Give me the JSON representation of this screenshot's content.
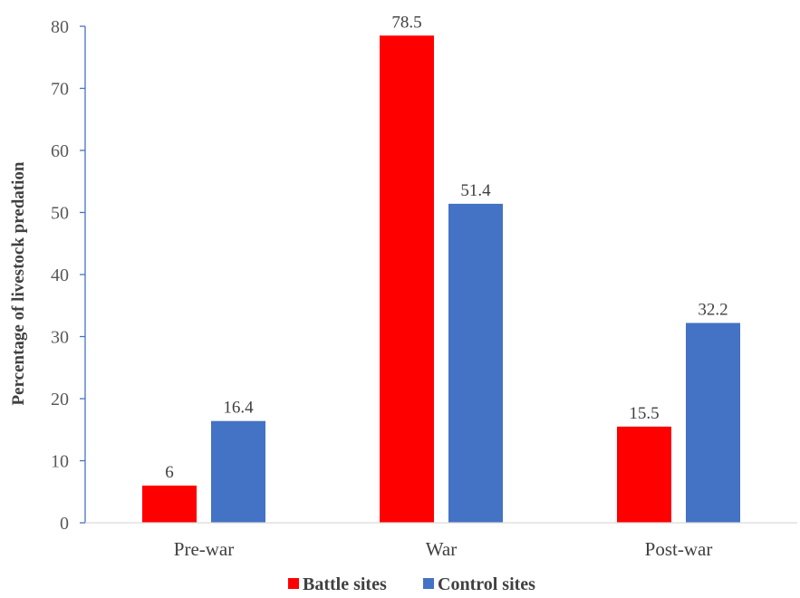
{
  "chart_data": {
    "type": "bar",
    "categories": [
      "Pre-war",
      "War",
      "Post-war"
    ],
    "series": [
      {
        "name": "Battle sites",
        "values": [
          6,
          78.5,
          15.5
        ],
        "color": "#ff0000"
      },
      {
        "name": "Control sites",
        "values": [
          16.4,
          51.4,
          32.2
        ],
        "color": "#4472c4"
      }
    ],
    "data_labels": [
      [
        "6",
        "78.5",
        "15.5"
      ],
      [
        "16.4",
        "51.4",
        "32.2"
      ]
    ],
    "title": "",
    "xlabel": "",
    "ylabel": "Percentage of livestock predation",
    "ylim": [
      0,
      80
    ],
    "yticks": [
      0,
      10,
      20,
      30,
      40,
      50,
      60,
      70,
      80
    ],
    "grid": false,
    "legend_position": "bottom"
  }
}
